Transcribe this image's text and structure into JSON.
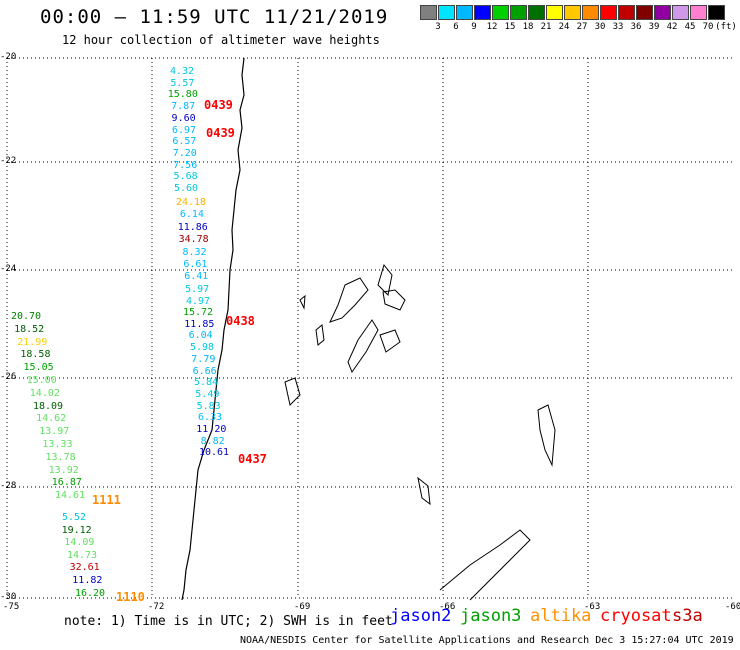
{
  "title": "00:00 – 11:59 UTC 11/21/2019",
  "subtitle": "12 hour collection of altimeter wave heights",
  "scale": {
    "labels": [
      "3",
      "6",
      "9",
      "12",
      "15",
      "18",
      "21",
      "24",
      "27",
      "30",
      "33",
      "36",
      "39",
      "42",
      "45",
      "70",
      "(ft)"
    ],
    "colors": [
      "#808080",
      "#00e5ff",
      "#00b8ff",
      "#0000ff",
      "#00d000",
      "#00a000",
      "#007000",
      "#ffff00",
      "#ffc800",
      "#ff8c00",
      "#ff0000",
      "#c00000",
      "#800000",
      "#9000a0",
      "#d098e8",
      "#ff80d0",
      "#000000"
    ]
  },
  "axes": {
    "lat_labels": [
      "-20",
      "-22",
      "-24",
      "-26",
      "-28",
      "-30"
    ],
    "lon_labels": [
      "-75",
      "-72",
      "-69",
      "-66",
      "-63",
      "-60"
    ]
  },
  "tracks": [
    {
      "time": "0439",
      "time_color": "#ff0000",
      "values": [
        {
          "v": "4.32",
          "c": "#00c8e0"
        },
        {
          "v": "5.57",
          "c": "#00c8e0"
        },
        {
          "v": "15.80",
          "c": "#00a000"
        },
        {
          "v": "7.87",
          "c": "#00b8ff"
        },
        {
          "v": "9.60",
          "c": "#0000c0"
        },
        {
          "v": "6.97",
          "c": "#00b8ff"
        },
        {
          "v": "6.57",
          "c": "#00b8ff"
        },
        {
          "v": "7.20",
          "c": "#00b8ff"
        },
        {
          "v": "7.56",
          "c": "#00b8ff"
        },
        {
          "v": "5.68",
          "c": "#00c8e0"
        },
        {
          "v": "5.60",
          "c": "#00c8e0"
        }
      ]
    },
    {
      "time": "0439",
      "time_color": "#ff0000",
      "values": [
        {
          "v": "24.18",
          "c": "#ffb000"
        },
        {
          "v": "6.14",
          "c": "#00b8ff"
        },
        {
          "v": "11.86",
          "c": "#0000c0"
        },
        {
          "v": "34.78",
          "c": "#a00000"
        },
        {
          "v": "8.32",
          "c": "#00b8ff"
        },
        {
          "v": "6.61",
          "c": "#00b8ff"
        },
        {
          "v": "6.41",
          "c": "#00b8ff"
        },
        {
          "v": "5.97",
          "c": "#00c8e0"
        },
        {
          "v": "4.97",
          "c": "#00c8e0"
        }
      ]
    },
    {
      "time": "0438",
      "time_color": "#ff0000",
      "values": [
        {
          "v": "15.72",
          "c": "#00a000"
        },
        {
          "v": "11.85",
          "c": "#0000c0"
        },
        {
          "v": "6.04",
          "c": "#00b8ff"
        },
        {
          "v": "5.98",
          "c": "#00c8e0"
        },
        {
          "v": "7.79",
          "c": "#00b8ff"
        },
        {
          "v": "6.66",
          "c": "#00b8ff"
        },
        {
          "v": "5.84",
          "c": "#00c8e0"
        },
        {
          "v": "5.49",
          "c": "#00c8e0"
        },
        {
          "v": "5.83",
          "c": "#00c8e0"
        },
        {
          "v": "6.33",
          "c": "#00b8ff"
        },
        {
          "v": "11.20",
          "c": "#0000c0"
        },
        {
          "v": "8.82",
          "c": "#00b8ff"
        },
        {
          "v": "10.61",
          "c": "#0000c0"
        }
      ]
    },
    {
      "time": "0437",
      "time_color": "#ff0000",
      "values": []
    },
    {
      "time": "1111",
      "time_color": "#ff8c00",
      "values": [
        {
          "v": "20.70",
          "c": "#008000"
        },
        {
          "v": "18.52",
          "c": "#006000"
        },
        {
          "v": "21.99",
          "c": "#ffd000"
        },
        {
          "v": "18.58",
          "c": "#006000"
        },
        {
          "v": "15.05",
          "c": "#00a000"
        },
        {
          "v": "15.00",
          "c": "#60e060"
        },
        {
          "v": "14.02",
          "c": "#60e060"
        },
        {
          "v": "18.09",
          "c": "#006000"
        },
        {
          "v": "14.62",
          "c": "#60e060"
        },
        {
          "v": "13.97",
          "c": "#60e060"
        },
        {
          "v": "13.33",
          "c": "#60e060"
        },
        {
          "v": "13.78",
          "c": "#60e060"
        },
        {
          "v": "13.92",
          "c": "#60e060"
        },
        {
          "v": "16.87",
          "c": "#00a000"
        },
        {
          "v": "14.61",
          "c": "#60e060"
        }
      ]
    },
    {
      "time": "1110",
      "time_color": "#ff8c00",
      "values": [
        {
          "v": "5.52",
          "c": "#00c8e0"
        },
        {
          "v": "19.12",
          "c": "#006000"
        },
        {
          "v": "14.09",
          "c": "#60e060"
        },
        {
          "v": "14.73",
          "c": "#60e060"
        },
        {
          "v": "32.61",
          "c": "#c00000"
        },
        {
          "v": "11.82",
          "c": "#0000c0"
        },
        {
          "v": "16.20",
          "c": "#00a000"
        }
      ]
    }
  ],
  "note": "note: 1) Time is in UTC; 2) SWH is in feet",
  "legend": [
    {
      "name": "jason2",
      "color": "#0000ff"
    },
    {
      "name": "jason3",
      "color": "#00a000"
    },
    {
      "name": "altika",
      "color": "#ff9000"
    },
    {
      "name": "cryosat",
      "color": "#ff0000"
    },
    {
      "name": "s3a",
      "color": "#c00000"
    }
  ],
  "credit": "NOAA/NESDIS Center for Satellite Applications and Research   Dec  3 15:27:04 UTC 2019",
  "colors": {
    "coast": "#000000",
    "grid": "#000000"
  }
}
